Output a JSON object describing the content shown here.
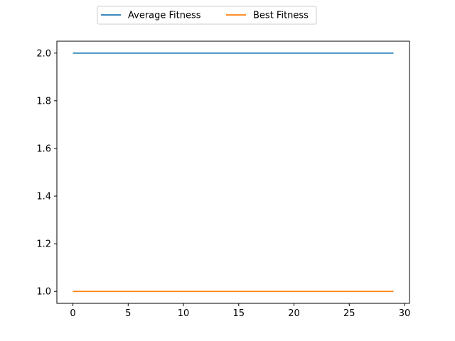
{
  "chart_data": {
    "type": "line",
    "title": "",
    "xlabel": "",
    "ylabel": "",
    "xlim": [
      -1.45,
      30.45
    ],
    "ylim": [
      0.95,
      2.05
    ],
    "xticks": [
      0,
      5,
      10,
      15,
      20,
      25,
      30
    ],
    "yticks": [
      1.0,
      1.2,
      1.4,
      1.6,
      1.8,
      2.0
    ],
    "ytick_format": 1,
    "x": [
      0,
      29
    ],
    "series": [
      {
        "name": "Average Fitness",
        "color": "#1f77b4",
        "values": [
          2.0,
          2.0
        ]
      },
      {
        "name": "Best Fitness",
        "color": "#ff7f0e",
        "values": [
          1.0,
          1.0
        ]
      }
    ],
    "legend": {
      "placement": "top-center, above plot",
      "columns": 2
    },
    "grid": false
  }
}
